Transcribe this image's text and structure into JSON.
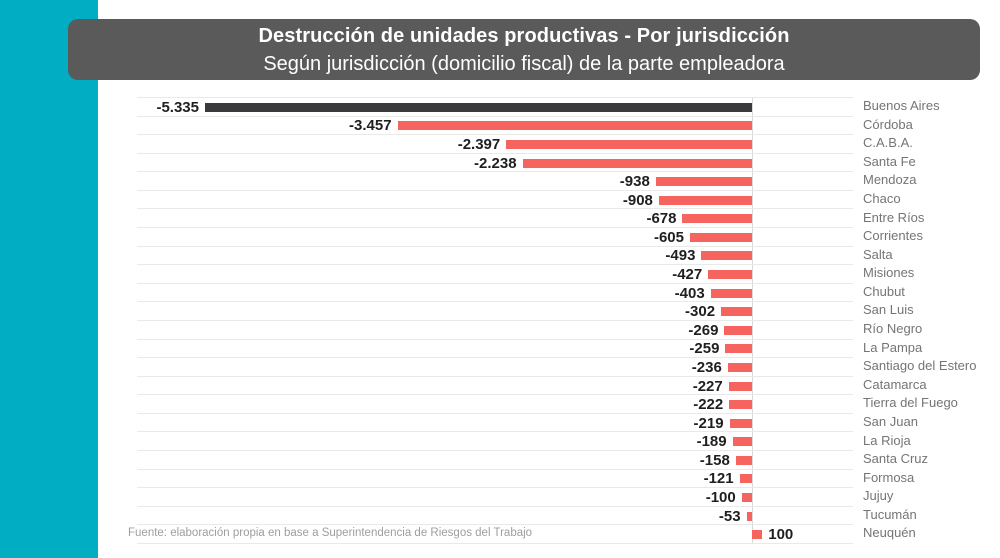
{
  "page": {
    "background_color": "#ffffff",
    "accent_stripe_color": "#00ADC2"
  },
  "header": {
    "title": "Destrucción de unidades productivas - Por jurisdicción",
    "subtitle": "Según jurisdicción (domicilio fiscal) de la parte empleadora",
    "background_color": "#5A5A5A",
    "text_color": "#ffffff"
  },
  "footer": {
    "source": "Fuente: elaboración propia en base a Superintendencia de Riesgos del Trabajo"
  },
  "chart_data": {
    "type": "bar",
    "orientation": "horizontal",
    "title": "Destrucción de unidades productivas - Por jurisdicción",
    "subtitle": "Según jurisdicción (domicilio fiscal) de la parte empleadora",
    "categories": [
      "Buenos Aires",
      "Córdoba",
      "C.A.B.A.",
      "Santa Fe",
      "Mendoza",
      "Chaco",
      "Entre Ríos",
      "Corrientes",
      "Salta",
      "Misiones",
      "Chubut",
      "San Luis",
      "Río Negro",
      "La Pampa",
      "Santiago del Estero",
      "Catamarca",
      "Tierra del Fuego",
      "San Juan",
      "La Rioja",
      "Santa Cruz",
      "Formosa",
      "Jujuy",
      "Tucumán",
      "Neuquén"
    ],
    "values": [
      -5335,
      -3457,
      -2397,
      -2238,
      -938,
      -908,
      -678,
      -605,
      -493,
      -427,
      -403,
      -302,
      -269,
      -259,
      -236,
      -227,
      -222,
      -219,
      -189,
      -158,
      -121,
      -100,
      -53,
      100
    ],
    "value_labels": [
      "-5.335",
      "-3.457",
      "-2.397",
      "-2.238",
      "-938",
      "-908",
      "-678",
      "-605",
      "-493",
      "-427",
      "-403",
      "-302",
      "-269",
      "-259",
      "-236",
      "-227",
      "-222",
      "-219",
      "-189",
      "-158",
      "-121",
      "-100",
      "-53",
      "100"
    ],
    "bar_color_default": "#F5645E",
    "bar_color_highlight": "#3A3A3C",
    "highlight_category": "Buenos Aires",
    "xlim": [
      -5500,
      500
    ],
    "grid": true,
    "zero_line": true,
    "legend": "none",
    "category_label_position": "right",
    "source_note": "Fuente: elaboración propia en base a Superintendencia de Riesgos del Trabajo"
  }
}
